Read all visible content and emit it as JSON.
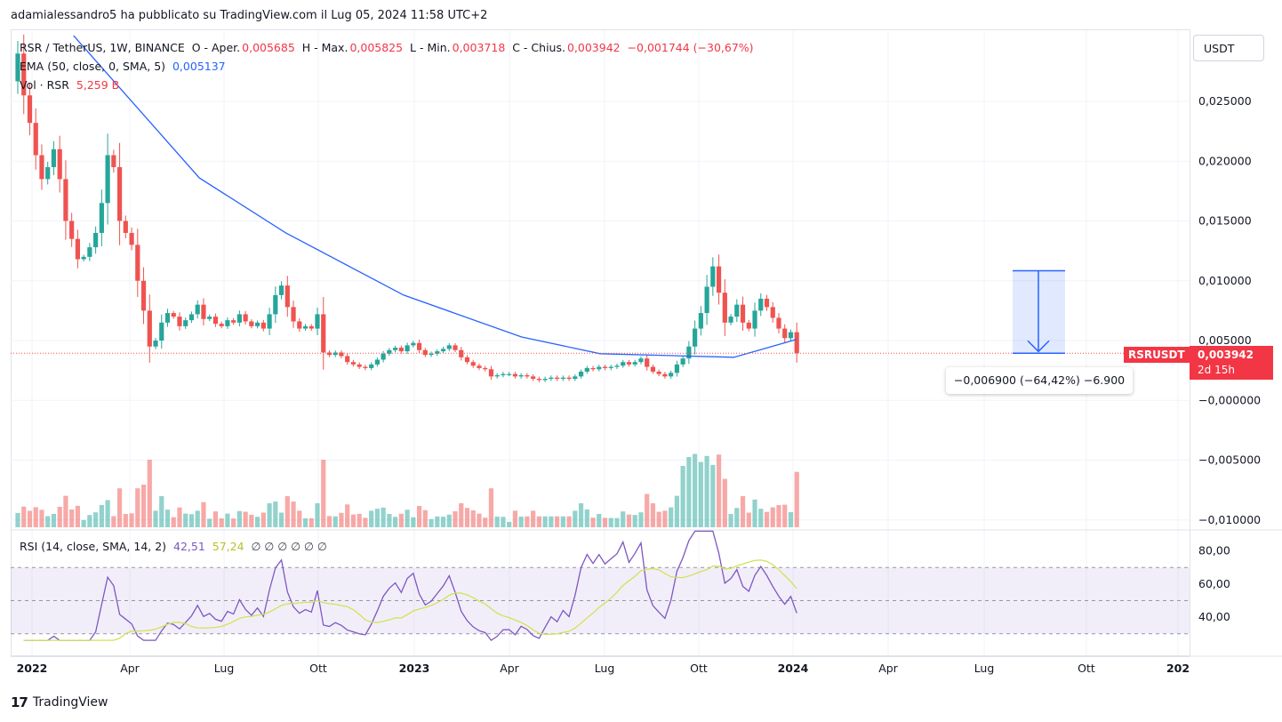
{
  "header": {
    "publisher_line": "adamialessandro5 ha pubblicato su TradingView.com il Lug 05, 2024 11:58 UTC+2"
  },
  "legend": {
    "symbol": "RSR / TetherUS, 1W, BINANCE",
    "o_label": "O - Aper.",
    "o_value": "0,005685",
    "h_label": "H - Max.",
    "h_value": "0,005825",
    "l_label": "L - Min.",
    "l_value": "0,003718",
    "c_label": "C - Chius.",
    "c_value": "0,003942",
    "change": "−0,001744 (−30,67%)",
    "ema_label": "EMA (50, close, 0, SMA, 5)",
    "ema_value": "0,005137",
    "vol_label": "Vol · RSR",
    "vol_value": "5,259 B",
    "rsi_label": "RSI (14, close, SMA, 14, 2)",
    "rsi_value": "42,51",
    "rsi_ma_value": "57,24",
    "rsi_extra": "∅ ∅ ∅ ∅ ∅ ∅"
  },
  "price_axis": {
    "currency_button": "USDT",
    "labels": [
      "0,025000",
      "0,020000",
      "0,015000",
      "0,010000",
      "0,005000",
      "−0,000000",
      "−0,005000",
      "−0,010000"
    ],
    "last_price_tag": "RSRUSDT",
    "last_price_value": "0,003942",
    "countdown": "2d 15h"
  },
  "rsi_axis": {
    "labels": [
      "80,00",
      "60,00",
      "40,00"
    ]
  },
  "time_axis": {
    "labels": [
      "2022",
      "Apr",
      "Lug",
      "Ott",
      "2023",
      "Apr",
      "Lug",
      "Ott",
      "2024",
      "Apr",
      "Lug",
      "Ott",
      "202"
    ]
  },
  "measure": {
    "tooltip": "−0,006900 (−64,42%) −6.900"
  },
  "footer": {
    "brand": "TradingView"
  },
  "colors": {
    "up": "#26a69a",
    "down": "#ef5350",
    "ema": "#2962ff",
    "rsi": "#7e57c2",
    "rsi_ma": "#d4e157",
    "measure": "#2962ff"
  },
  "chart_data": {
    "type": "candlestick",
    "title": "RSR / TetherUS, 1W, BINANCE",
    "interval": "weekly",
    "y_axis": {
      "ylim": [
        -0.0105,
        0.0305
      ],
      "ticks": [
        0.025,
        0.02,
        0.015,
        0.01,
        0.005,
        0.0,
        -0.005,
        -0.01
      ]
    },
    "close_series": [
      0.029,
      0.0255,
      0.0232,
      0.0205,
      0.0185,
      0.0195,
      0.021,
      0.0185,
      0.015,
      0.0135,
      0.0118,
      0.012,
      0.0128,
      0.014,
      0.0165,
      0.0205,
      0.0195,
      0.015,
      0.014,
      0.013,
      0.01,
      0.0075,
      0.0045,
      0.005,
      0.0065,
      0.0073,
      0.007,
      0.0062,
      0.0067,
      0.0072,
      0.008,
      0.0068,
      0.007,
      0.0064,
      0.0062,
      0.0067,
      0.0065,
      0.0072,
      0.0066,
      0.0062,
      0.0065,
      0.006,
      0.0072,
      0.0088,
      0.0096,
      0.0078,
      0.0066,
      0.006,
      0.0062,
      0.006,
      0.0072,
      0.004,
      0.0038,
      0.004,
      0.0037,
      0.0032,
      0.003,
      0.0028,
      0.0027,
      0.003,
      0.0034,
      0.0039,
      0.0042,
      0.0044,
      0.0041,
      0.0046,
      0.0048,
      0.0042,
      0.0038,
      0.0039,
      0.0041,
      0.0043,
      0.0046,
      0.0042,
      0.0036,
      0.0032,
      0.0029,
      0.0027,
      0.0026,
      0.002,
      0.0021,
      0.0022,
      0.0022,
      0.002,
      0.0021,
      0.002,
      0.0018,
      0.0017,
      0.0018,
      0.0019,
      0.0018,
      0.0019,
      0.0018,
      0.002,
      0.0024,
      0.0027,
      0.0026,
      0.0028,
      0.0027,
      0.0028,
      0.0029,
      0.0032,
      0.003,
      0.0032,
      0.0035,
      0.0028,
      0.0024,
      0.0022,
      0.002,
      0.0023,
      0.003,
      0.0035,
      0.0045,
      0.006,
      0.0073,
      0.0095,
      0.0112,
      0.009,
      0.0065,
      0.007,
      0.008,
      0.0065,
      0.006,
      0.0075,
      0.0085,
      0.0078,
      0.0069,
      0.006,
      0.0052,
      0.0057,
      0.00394
    ],
    "ema50": {
      "name": "EMA (50, close, 0, SMA, 5)",
      "x_fraction": [
        0.08,
        0.24,
        0.35,
        0.5,
        0.65,
        0.75,
        0.92,
        1.0
      ],
      "values": [
        0.0305,
        0.0186,
        0.014,
        0.0088,
        0.0053,
        0.0039,
        0.0036,
        0.0051
      ]
    },
    "volume": {
      "name": "Vol · RSR",
      "last": "5,259 B"
    },
    "rsi": {
      "name": "RSI (14, close, SMA, 14, 2)",
      "last": 42.51,
      "ma_last": 57.24,
      "levels": [
        70,
        50,
        30
      ]
    },
    "measurement": {
      "from": 0.01084,
      "to": 0.00394,
      "change": -0.0069,
      "percent": -64.42
    }
  }
}
